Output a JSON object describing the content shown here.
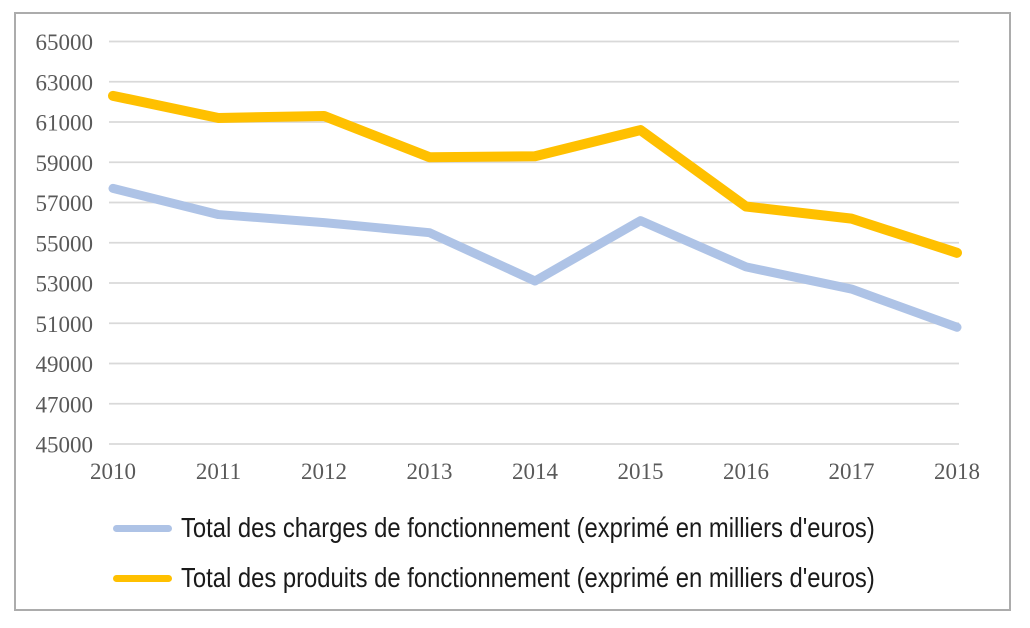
{
  "chart_data": {
    "type": "line",
    "categories": [
      "2010",
      "2011",
      "2012",
      "2013",
      "2014",
      "2015",
      "2016",
      "2017",
      "2018"
    ],
    "series": [
      {
        "key": "charges",
        "name": "Total des charges de fonctionnement (exprimé en milliers d'euros)",
        "color": "#AEC3E6",
        "values": [
          57700,
          56400,
          56000,
          55500,
          53100,
          56100,
          53800,
          52700,
          50800
        ]
      },
      {
        "key": "produits",
        "name": "Total des produits de fonctionnement (exprimé en milliers d'euros)",
        "color": "#FFC000",
        "values": [
          62300,
          61200,
          61300,
          59250,
          59300,
          60600,
          56800,
          56200,
          54500
        ]
      }
    ],
    "ylim": [
      45000,
      65000
    ],
    "ytick_step": 2000,
    "yticks": [
      65000,
      63000,
      61000,
      59000,
      57000,
      55000,
      53000,
      51000,
      49000,
      47000,
      45000
    ],
    "grid": "horizontal",
    "legend_position": "bottom-left",
    "styles": {
      "grid_color": "#D9D9D9",
      "tick_label_color": "#595959",
      "legend_text_color": "#1A1A1A",
      "figure_border_color": "#ACACAC",
      "background": "#FFFFFF"
    }
  }
}
